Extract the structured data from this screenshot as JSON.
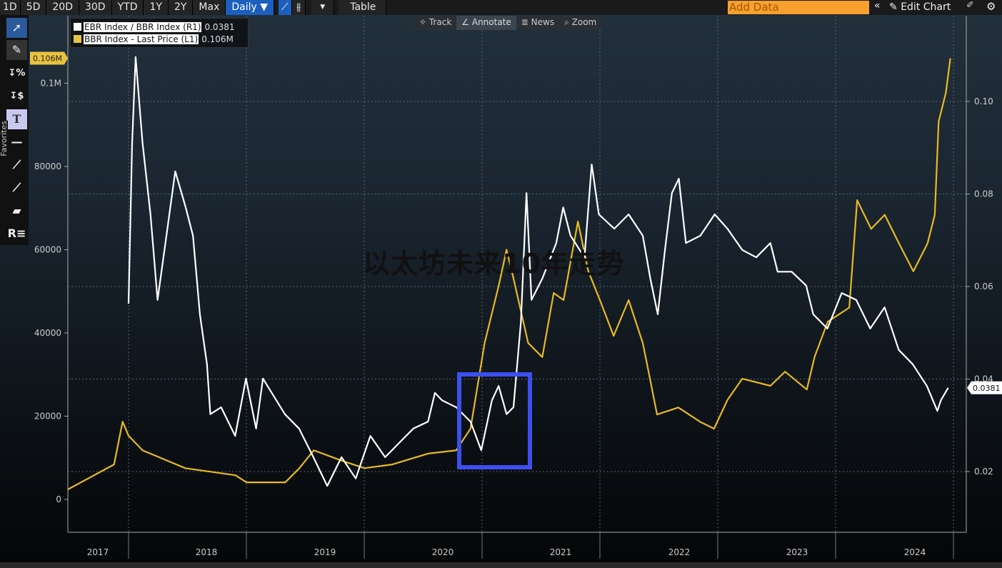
{
  "toolbar": {
    "ranges": [
      "1D",
      "5D",
      "20D",
      "30D",
      "YTD",
      "1Y",
      "2Y",
      "Max"
    ],
    "frequency": "Daily ▼",
    "table": "Table",
    "add_data_placeholder": "Add Data",
    "edit_chart": "Edit Chart",
    "favorites": "Favorites"
  },
  "float_toolbar": {
    "track": "Track",
    "annotate": "Annotate",
    "news": "News",
    "zoom": "Zoom"
  },
  "watermark": "以太坊未来10年走势",
  "colors": {
    "ratio": "#ffffff",
    "price": "#e8b923",
    "annotation_box": "#3c50ee",
    "add_data": "#f7a030",
    "active_button": "#1d5fbf"
  },
  "chart_data": {
    "type": "line",
    "legend_placement": "top-left",
    "grid": true,
    "x_ticks": [
      "2017",
      "2018",
      "2019",
      "2020",
      "2021",
      "2022",
      "2023",
      "2024"
    ],
    "left_axis": {
      "ticks": [
        "0",
        "20000",
        "40000",
        "60000",
        "80000",
        "0.1M"
      ],
      "tick_values": [
        0,
        20000,
        40000,
        60000,
        80000,
        100000
      ],
      "last_tag": "0.106M"
    },
    "right_axis": {
      "ticks": [
        "0.02",
        "0.04",
        "0.06",
        "0.08",
        "0.10"
      ],
      "tick_values": [
        0.02,
        0.04,
        0.06,
        0.08,
        0.1
      ],
      "last_tag": "0.0381"
    },
    "series": [
      {
        "name": "EBR Index / BBR Index (R1)",
        "last": "0.0381",
        "axis": "right",
        "points": [
          [
            "2018-01-01",
            0.0563
          ],
          [
            "2018-01-12",
            0.091
          ],
          [
            "2018-01-23",
            0.1096
          ],
          [
            "2018-02-14",
            0.091
          ],
          [
            "2018-03-08",
            0.0756
          ],
          [
            "2018-03-30",
            0.0571
          ],
          [
            "2018-04-21",
            0.0679
          ],
          [
            "2018-05-24",
            0.0849
          ],
          [
            "2018-06-26",
            0.0771
          ],
          [
            "2018-07-18",
            0.071
          ],
          [
            "2018-08-09",
            0.054
          ],
          [
            "2018-08-31",
            0.0432
          ],
          [
            "2018-09-11",
            0.0324
          ],
          [
            "2018-10-14",
            0.0339
          ],
          [
            "2018-11-27",
            0.0277
          ],
          [
            "2018-12-30",
            0.0401
          ],
          [
            "2019-01-31",
            0.0293
          ],
          [
            "2019-02-22",
            0.0401
          ],
          [
            "2019-04-29",
            0.0324
          ],
          [
            "2019-06-12",
            0.0293
          ],
          [
            "2019-07-26",
            0.0231
          ],
          [
            "2019-09-08",
            0.0169
          ],
          [
            "2019-10-22",
            0.0231
          ],
          [
            "2019-12-05",
            0.0185
          ],
          [
            "2020-01-20",
            0.0277
          ],
          [
            "2020-03-05",
            0.0231
          ],
          [
            "2020-04-18",
            0.0262
          ],
          [
            "2020-06-01",
            0.0293
          ],
          [
            "2020-07-16",
            0.0308
          ],
          [
            "2020-08-07",
            0.037
          ],
          [
            "2020-08-29",
            0.0354
          ],
          [
            "2020-10-12",
            0.0339
          ],
          [
            "2020-11-26",
            0.0308
          ],
          [
            "2020-12-29",
            0.0246
          ],
          [
            "2021-02-01",
            0.0354
          ],
          [
            "2021-02-22",
            0.0385
          ],
          [
            "2021-03-16",
            0.0324
          ],
          [
            "2021-04-07",
            0.0339
          ],
          [
            "2021-04-30",
            0.0524
          ],
          [
            "2021-05-17",
            0.0802
          ],
          [
            "2021-06-02",
            0.0571
          ],
          [
            "2021-07-05",
            0.0617
          ],
          [
            "2021-08-18",
            0.0694
          ],
          [
            "2021-09-09",
            0.0771
          ],
          [
            "2021-10-01",
            0.071
          ],
          [
            "2021-11-14",
            0.0663
          ],
          [
            "2021-12-06",
            0.0864
          ],
          [
            "2021-12-28",
            0.0756
          ],
          [
            "2022-02-15",
            0.0725
          ],
          [
            "2022-03-29",
            0.0756
          ],
          [
            "2022-05-12",
            0.071
          ],
          [
            "2022-06-05",
            0.0617
          ],
          [
            "2022-06-28",
            0.054
          ],
          [
            "2022-07-20",
            0.0679
          ],
          [
            "2022-08-11",
            0.0802
          ],
          [
            "2022-09-02",
            0.0833
          ],
          [
            "2022-09-24",
            0.0694
          ],
          [
            "2022-11-08",
            0.071
          ],
          [
            "2022-12-22",
            0.0756
          ],
          [
            "2023-01-31",
            0.0725
          ],
          [
            "2023-03-16",
            0.0679
          ],
          [
            "2023-04-29",
            0.0663
          ],
          [
            "2023-06-12",
            0.0694
          ],
          [
            "2023-07-04",
            0.0632
          ],
          [
            "2023-08-17",
            0.0632
          ],
          [
            "2023-10-01",
            0.0602
          ],
          [
            "2023-10-23",
            0.054
          ],
          [
            "2023-12-06",
            0.0509
          ],
          [
            "2024-01-20",
            0.0586
          ],
          [
            "2024-03-04",
            0.0571
          ],
          [
            "2024-04-17",
            0.0509
          ],
          [
            "2024-05-31",
            0.0555
          ],
          [
            "2024-07-14",
            0.0463
          ],
          [
            "2024-08-27",
            0.0432
          ],
          [
            "2024-10-10",
            0.0385
          ],
          [
            "2024-11-12",
            0.0331
          ],
          [
            "2024-11-23",
            0.0354
          ],
          [
            "2024-12-15",
            0.0381
          ]
        ]
      },
      {
        "name": "BBR Index - Last Price (L1)",
        "last": "0.106M",
        "axis": "left",
        "points": [
          [
            "2017-06-26",
            2400
          ],
          [
            "2017-11-17",
            8400
          ],
          [
            "2017-12-13",
            18700
          ],
          [
            "2018-01-01",
            15300
          ],
          [
            "2018-02-14",
            11800
          ],
          [
            "2018-06-25",
            7500
          ],
          [
            "2018-11-28",
            5800
          ],
          [
            "2019-01-01",
            4100
          ],
          [
            "2019-04-30",
            4100
          ],
          [
            "2019-06-13",
            7500
          ],
          [
            "2019-07-27",
            11800
          ],
          [
            "2019-10-23",
            9300
          ],
          [
            "2020-01-01",
            7500
          ],
          [
            "2020-03-27",
            8400
          ],
          [
            "2020-07-16",
            11000
          ],
          [
            "2020-10-12",
            11800
          ],
          [
            "2020-11-26",
            17000
          ],
          [
            "2021-01-09",
            37600
          ],
          [
            "2021-02-22",
            51300
          ],
          [
            "2021-03-16",
            60000
          ],
          [
            "2021-04-07",
            53100
          ],
          [
            "2021-05-22",
            37600
          ],
          [
            "2021-07-05",
            34200
          ],
          [
            "2021-08-10",
            49600
          ],
          [
            "2021-09-10",
            47900
          ],
          [
            "2021-10-24",
            66800
          ],
          [
            "2021-11-26",
            54800
          ],
          [
            "2022-01-01",
            47900
          ],
          [
            "2022-02-13",
            39300
          ],
          [
            "2022-03-29",
            47900
          ],
          [
            "2022-05-12",
            37600
          ],
          [
            "2022-06-04",
            29000
          ],
          [
            "2022-06-26",
            20400
          ],
          [
            "2022-08-31",
            22100
          ],
          [
            "2022-11-06",
            18700
          ],
          [
            "2022-12-20",
            17000
          ],
          [
            "2023-01-31",
            23900
          ],
          [
            "2023-03-16",
            29000
          ],
          [
            "2023-06-12",
            27300
          ],
          [
            "2023-07-27",
            30700
          ],
          [
            "2023-10-03",
            26400
          ],
          [
            "2023-10-27",
            34200
          ],
          [
            "2023-12-07",
            42700
          ],
          [
            "2024-02-13",
            46100
          ],
          [
            "2024-03-07",
            71900
          ],
          [
            "2024-04-20",
            65000
          ],
          [
            "2024-06-01",
            68400
          ],
          [
            "2024-07-15",
            61500
          ],
          [
            "2024-08-29",
            54800
          ],
          [
            "2024-10-12",
            61500
          ],
          [
            "2024-11-04",
            68400
          ],
          [
            "2024-11-16",
            90800
          ],
          [
            "2024-12-08",
            97700
          ],
          [
            "2024-12-22",
            106000
          ]
        ]
      }
    ]
  }
}
